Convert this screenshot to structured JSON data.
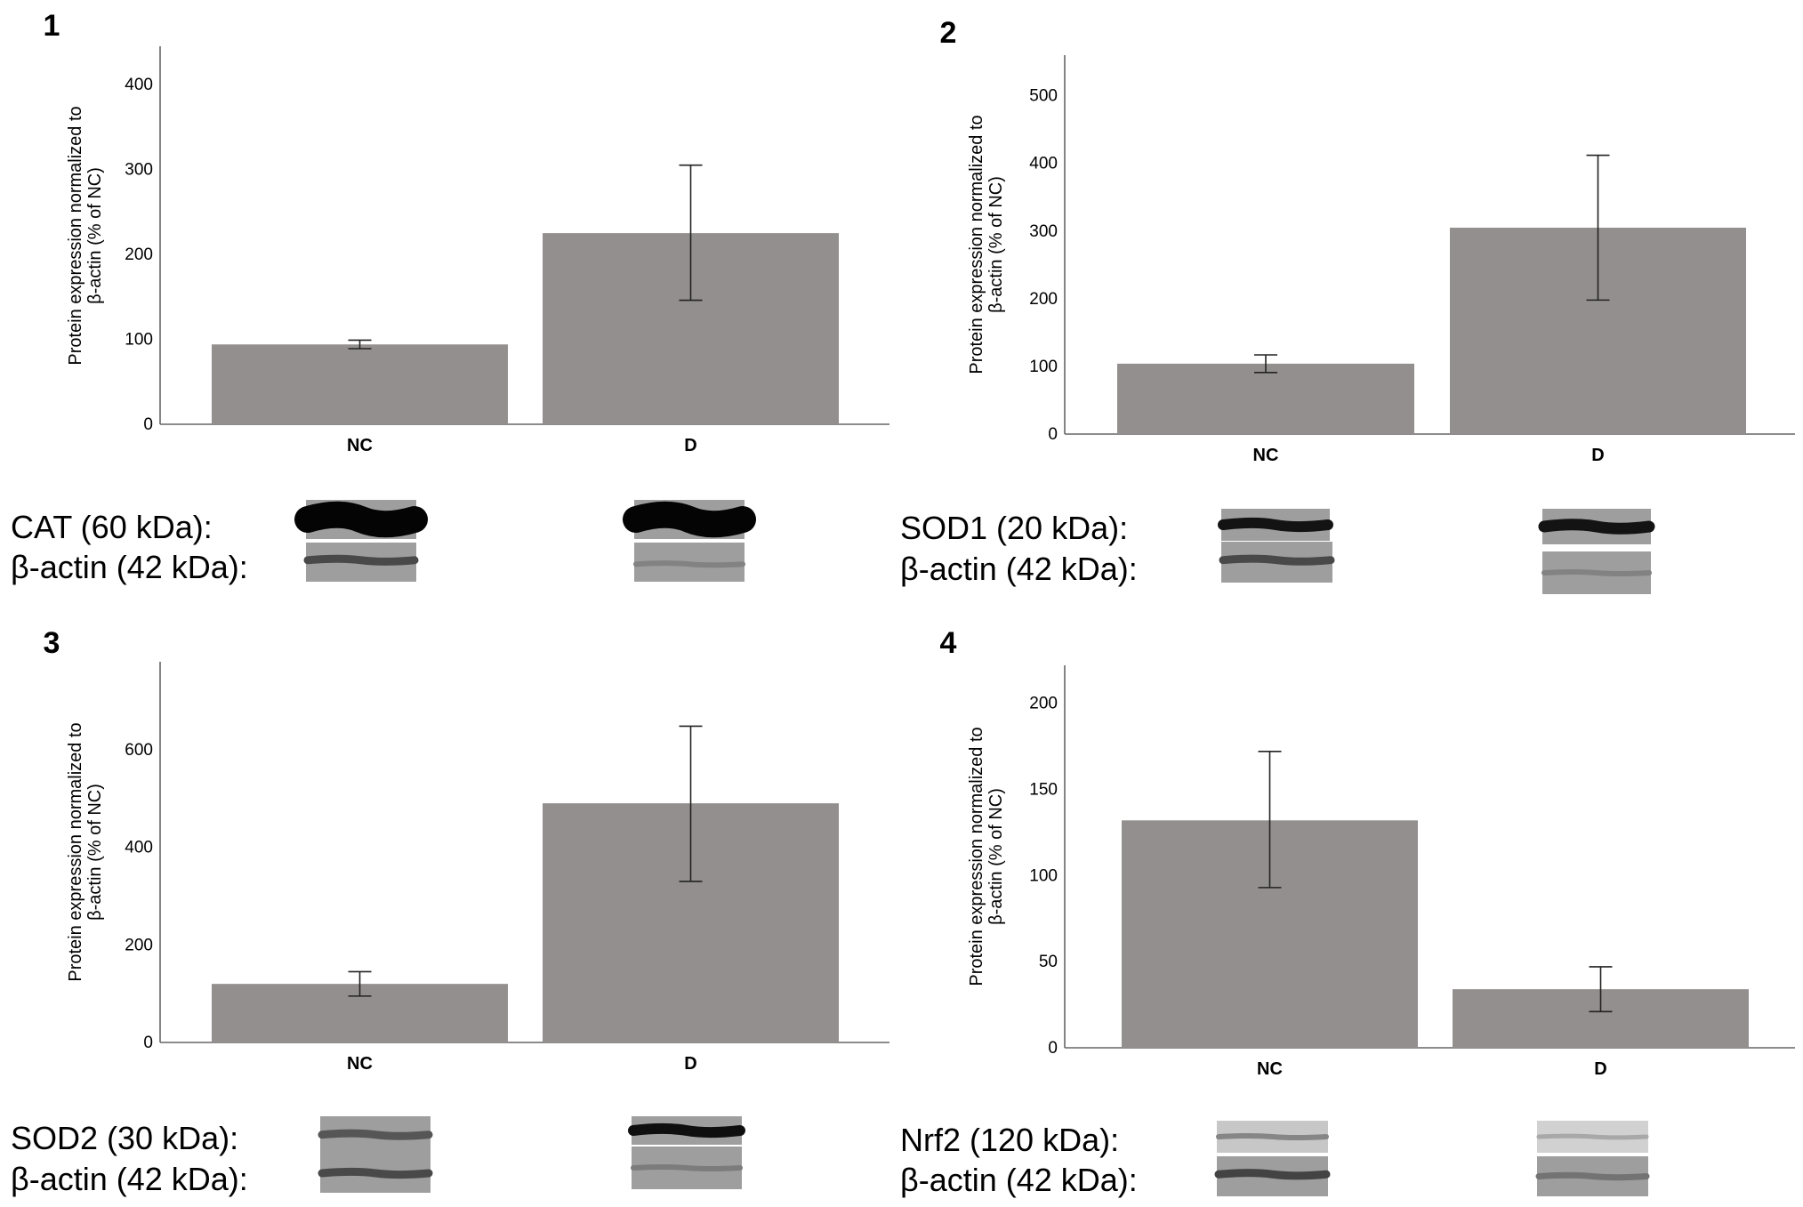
{
  "chart_data": [
    {
      "type": "bar",
      "panel": "1",
      "categories": [
        "NC",
        "D"
      ],
      "values": [
        94,
        225
      ],
      "error_low": [
        89,
        146
      ],
      "error_high": [
        99,
        305
      ],
      "ylabel": [
        "Protein expression normalized to",
        "β-actin (% of NC)"
      ],
      "xlabel": "",
      "ylim": [
        0,
        445
      ],
      "yticks": [
        0,
        100,
        200,
        300,
        400
      ],
      "grid": false,
      "blots": [
        {
          "label": "CAT (60 kDa):",
          "nc_band": "dark-thick",
          "d_band": "dark-thick"
        },
        {
          "label": "β-actin (42 kDa):",
          "nc_band": "medium",
          "d_band": "light"
        }
      ]
    },
    {
      "type": "bar",
      "panel": "2",
      "categories": [
        "NC",
        "D"
      ],
      "values": [
        104,
        305
      ],
      "error_low": [
        91,
        198
      ],
      "error_high": [
        117,
        412
      ],
      "ylabel": [
        "Protein expression normalized to",
        "β-actin (% of NC)"
      ],
      "xlabel": "",
      "ylim": [
        0,
        560
      ],
      "yticks": [
        0,
        100,
        200,
        300,
        400,
        500
      ],
      "grid": false,
      "blots": [
        {
          "label": "SOD1 (20 kDa):",
          "nc_band": "dark",
          "d_band": "dark"
        },
        {
          "label": "β-actin (42 kDa):",
          "nc_band": "medium",
          "d_band": "light"
        }
      ]
    },
    {
      "type": "bar",
      "panel": "3",
      "categories": [
        "NC",
        "D"
      ],
      "values": [
        120,
        490
      ],
      "error_low": [
        95,
        330
      ],
      "error_high": [
        145,
        648
      ],
      "ylabel": [
        "Protein expression normalized to",
        "β-actin (% of NC)"
      ],
      "xlabel": "",
      "ylim": [
        0,
        780
      ],
      "yticks": [
        0,
        200,
        400,
        600
      ],
      "grid": false,
      "blots": [
        {
          "label": "SOD2 (30 kDa):",
          "nc_band": "medium",
          "d_band": "dark"
        },
        {
          "label": "β-actin (42 kDa):",
          "nc_band": "medium",
          "d_band": "light"
        }
      ]
    },
    {
      "type": "bar",
      "panel": "4",
      "categories": [
        "NC",
        "D"
      ],
      "values": [
        132,
        34
      ],
      "error_low": [
        93,
        21
      ],
      "error_high": [
        172,
        47
      ],
      "ylabel": [
        "Protein expression normalized to",
        "β-actin (% of NC)"
      ],
      "xlabel": "",
      "ylim": [
        0,
        222
      ],
      "yticks": [
        0,
        50,
        100,
        150,
        200
      ],
      "grid": false,
      "blots": [
        {
          "label": "Nrf2 (120 kDa):",
          "nc_band": "faint",
          "d_band": "very-faint"
        },
        {
          "label": "β-actin (42 kDa):",
          "nc_band": "medium",
          "d_band": "light"
        }
      ]
    }
  ],
  "colors": {
    "bar": "#948f8f",
    "axis": "#666666",
    "error_bar": "#222222",
    "band": "#111111",
    "blot_background": "#9a9a9a"
  }
}
